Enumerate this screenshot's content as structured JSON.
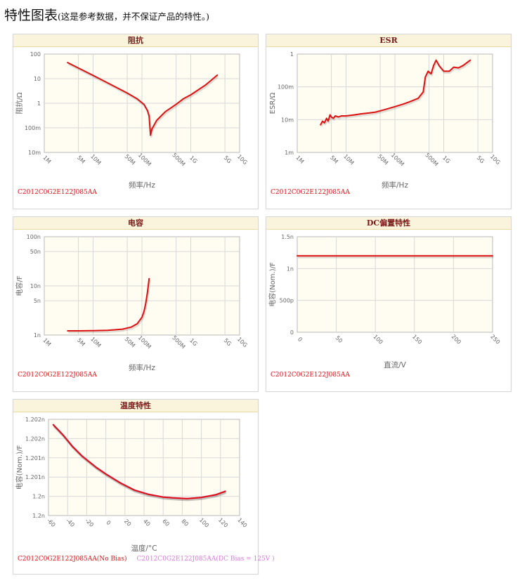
{
  "page": {
    "title": "特性图表",
    "subtitle": "(这是参考数据，并不保证产品的特性。)"
  },
  "colors": {
    "series_red": "#dd1111",
    "series_violet": "#dd77dd",
    "plot_bg": "#fffdf2",
    "title_bar": "#fbf4dc",
    "title_text": "#7a1818"
  },
  "chart_data": [
    {
      "id": "impedance",
      "type": "line",
      "title": "阻抗",
      "xlabel": "频率/Hz",
      "ylabel": "阻抗/Ω",
      "xscale": "log",
      "yscale": "log",
      "xlim": [
        1000000,
        10000000000
      ],
      "ylim": [
        0.01,
        100
      ],
      "x_ticks": [
        1000000,
        5000000,
        10000000,
        50000000,
        100000000,
        500000000,
        1000000000,
        5000000000,
        10000000000
      ],
      "x_tick_labels": [
        "1M",
        "5M",
        "10M",
        "50M",
        "100M",
        "500M",
        "1G",
        "5G",
        "10G"
      ],
      "y_ticks": [
        0.01,
        0.1,
        1,
        10,
        100
      ],
      "y_tick_labels": [
        "10m",
        "100m",
        "1",
        "10",
        "100"
      ],
      "grid": true,
      "series": [
        {
          "name": "C2012C0G2E122J085AA",
          "color": "#dd1111",
          "x": [
            3000000,
            5000000,
            10000000,
            20000000,
            50000000,
            80000000,
            110000000,
            130000000,
            140000000,
            145000000,
            150000000,
            160000000,
            200000000,
            300000000,
            500000000,
            700000000,
            1000000000,
            2000000000,
            3500000000
          ],
          "y": [
            45,
            27,
            13.5,
            6.7,
            2.6,
            1.5,
            0.9,
            0.5,
            0.3,
            0.12,
            0.05,
            0.09,
            0.2,
            0.45,
            0.9,
            1.5,
            2.2,
            5.5,
            14
          ]
        }
      ],
      "legend": [
        "C2012C0G2E122J085AA"
      ]
    },
    {
      "id": "esr",
      "type": "line",
      "title": "ESR",
      "xlabel": "频率/Hz",
      "ylabel": "ESR/Ω",
      "xscale": "log",
      "yscale": "log",
      "xlim": [
        1000000,
        10000000000
      ],
      "ylim": [
        0.001,
        1
      ],
      "x_ticks": [
        1000000,
        5000000,
        10000000,
        50000000,
        100000000,
        500000000,
        1000000000,
        5000000000,
        10000000000
      ],
      "x_tick_labels": [
        "1M",
        "5M",
        "10M",
        "50M",
        "100M",
        "500M",
        "1G",
        "5G",
        "10G"
      ],
      "y_ticks": [
        0.001,
        0.01,
        0.1,
        1
      ],
      "y_tick_labels": [
        "1m",
        "10m",
        "100m",
        "1"
      ],
      "grid": true,
      "series": [
        {
          "name": "C2012C0G2E122J085AA",
          "color": "#dd1111",
          "x": [
            3000000,
            3300000,
            3600000,
            4000000,
            4300000,
            4700000,
            5000000,
            5500000,
            6000000,
            7000000,
            8000000,
            10000000,
            15000000,
            20000000,
            30000000,
            40000000,
            60000000,
            100000000,
            150000000,
            200000000,
            300000000,
            380000000,
            420000000,
            480000000,
            550000000,
            620000000,
            700000000,
            800000000,
            1000000000,
            1300000000,
            1600000000,
            2000000000,
            2500000000,
            3000000000,
            3500000000
          ],
          "y": [
            0.007,
            0.009,
            0.008,
            0.011,
            0.009,
            0.014,
            0.012,
            0.011,
            0.013,
            0.012,
            0.013,
            0.013,
            0.014,
            0.015,
            0.016,
            0.017,
            0.02,
            0.025,
            0.03,
            0.035,
            0.045,
            0.07,
            0.2,
            0.3,
            0.25,
            0.45,
            0.65,
            0.45,
            0.3,
            0.3,
            0.4,
            0.38,
            0.45,
            0.55,
            0.65
          ]
        }
      ],
      "legend": [
        "C2012C0G2E122J085AA"
      ]
    },
    {
      "id": "capacitance",
      "type": "line",
      "title": "电容",
      "xlabel": "频率/Hz",
      "ylabel": "电容/F",
      "xscale": "log",
      "yscale": "log",
      "xlim": [
        1000000,
        10000000000
      ],
      "ylim": [
        1e-09,
        1e-07
      ],
      "x_ticks": [
        1000000,
        5000000,
        10000000,
        50000000,
        100000000,
        500000000,
        1000000000,
        5000000000,
        10000000000
      ],
      "x_tick_labels": [
        "1M",
        "5M",
        "10M",
        "50M",
        "100M",
        "500M",
        "1G",
        "5G",
        "10G"
      ],
      "y_ticks": [
        1e-09,
        5e-09,
        1e-08,
        5e-08,
        1e-07
      ],
      "y_tick_labels": [
        "1n",
        "5n",
        "10n",
        "50n",
        "100n"
      ],
      "grid": true,
      "series": [
        {
          "name": "C2012C0G2E122J085AA",
          "color": "#dd1111",
          "x": [
            3000000,
            5000000,
            10000000,
            20000000,
            40000000,
            60000000,
            80000000,
            100000000,
            110000000,
            120000000,
            130000000,
            140000000
          ],
          "y": [
            1.22e-09,
            1.22e-09,
            1.23e-09,
            1.25e-09,
            1.32e-09,
            1.45e-09,
            1.7e-09,
            2.3e-09,
            3e-09,
            4.5e-09,
            7.5e-09,
            1.4e-08
          ]
        }
      ],
      "legend": [
        "C2012C0G2E122J085AA"
      ]
    },
    {
      "id": "dc-bias",
      "type": "line",
      "title": "DC偏置特性",
      "xlabel": "直流/V",
      "ylabel": "电容(Nom.)/F",
      "xscale": "linear",
      "yscale": "linear",
      "xlim": [
        0,
        250
      ],
      "ylim": [
        0,
        1.5e-09
      ],
      "x_ticks": [
        0,
        50,
        100,
        150,
        200,
        250
      ],
      "x_tick_labels": [
        "0",
        "50",
        "100",
        "150",
        "200",
        "250"
      ],
      "y_ticks": [
        0,
        5e-10,
        1e-09,
        1.5e-09
      ],
      "y_tick_labels": [
        "0",
        "500p",
        "1n",
        "1.5n"
      ],
      "grid": true,
      "series": [
        {
          "name": "C2012C0G2E122J085AA",
          "color": "#dd1111",
          "x": [
            0,
            250
          ],
          "y": [
            1.2e-09,
            1.2e-09
          ]
        }
      ],
      "legend": [
        "C2012C0G2E122J085AA"
      ]
    },
    {
      "id": "temperature",
      "type": "line",
      "title": "温度特性",
      "xlabel": "温度/°C",
      "ylabel": "电容(Nom.)/F",
      "xscale": "linear",
      "yscale": "linear",
      "xlim": [
        -60,
        140
      ],
      "ylim": [
        1.2,
        1.2025
      ],
      "x_ticks": [
        -60,
        -40,
        -20,
        0,
        20,
        40,
        60,
        80,
        100,
        120,
        140
      ],
      "x_tick_labels": [
        "-60",
        "-40",
        "-20",
        "0",
        "20",
        "40",
        "60",
        "80",
        "100",
        "120",
        "140"
      ],
      "y_ticks": [
        1.2,
        1.2005,
        1.201,
        1.2015,
        1.202,
        1.2025
      ],
      "y_tick_labels": [
        "1.2n",
        "1.2n",
        "1.201n",
        "1.201n",
        "1.202n",
        "1.202n"
      ],
      "grid": true,
      "series": [
        {
          "name": "C2012C0G2E122J085AA(No Bias)",
          "color": "#dd1111",
          "x": [
            -55,
            -45,
            -35,
            -25,
            -10,
            0,
            15,
            30,
            45,
            60,
            70,
            85,
            100,
            115,
            125
          ],
          "y": [
            1.20236,
            1.2021,
            1.2018,
            1.20155,
            1.20125,
            1.20108,
            1.20085,
            1.20066,
            1.20055,
            1.20048,
            1.20046,
            1.20044,
            1.20047,
            1.20054,
            1.20063
          ]
        },
        {
          "name": "C2012C0G2E122J085AA(DC Bias = 125V )",
          "color": "#dd77dd",
          "x": [
            -55,
            -45,
            -35,
            -25,
            -10,
            0,
            15,
            30,
            45,
            60,
            70,
            85,
            100,
            115,
            125
          ],
          "y": [
            1.20236,
            1.2021,
            1.2018,
            1.20155,
            1.20125,
            1.20108,
            1.20085,
            1.20066,
            1.20055,
            1.20048,
            1.20046,
            1.20044,
            1.20047,
            1.20054,
            1.20063
          ]
        }
      ],
      "legend": [
        "C2012C0G2E122J085AA(No Bias)",
        "C2012C0G2E122J085AA(DC Bias = 125V )"
      ]
    }
  ]
}
